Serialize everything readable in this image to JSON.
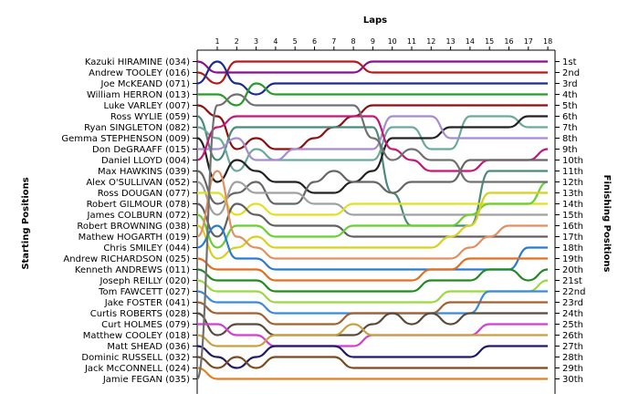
{
  "chart_data": {
    "type": "line",
    "title": "",
    "xlabel": "Laps",
    "ylabel_left": "Starting Positions",
    "ylabel_right": "Finishing Positions",
    "laps": [
      "1",
      "2",
      "3",
      "4",
      "5",
      "6",
      "7",
      "8",
      "9",
      "10",
      "11",
      "12",
      "13",
      "14",
      "15",
      "16",
      "17",
      "18"
    ],
    "drivers": [
      "Kazuki HIRAMINE (034)",
      "Andrew TOOLEY (016)",
      "Joe McKEAND (071)",
      "William HERRON (013)",
      "Luke VARLEY (007)",
      "Ross WYLIE (059)",
      "Ryan SINGLETON (082)",
      "Gemma STEPHENSON (009)",
      "Don DeGRAAFF (015)",
      "Daniel LLOYD (004)",
      "Max HAWKINS (039)",
      "Alex O'SULLIVAN (052)",
      "Ross DOUGAN (077)",
      "Robert GILMOUR (078)",
      "James COLBURN (072)",
      "Robert BROWNING (038)",
      "Mathew HOGARTH (019)",
      "Chris SMILEY (044)",
      "Andrew RICHARDSON (025)",
      "Kenneth ANDREWS (011)",
      "Joseph REILLY (020)",
      "Tom FAWCETT (027)",
      "Jake FOSTER (041)",
      "Curtis ROBERTS (028)",
      "Curt HOLMES (079)",
      "Matthew COOLEY (018)",
      "Matt SHEAD (036)",
      "Dominic RUSSELL (032)",
      "Jack McCONNELL (024)",
      "Jamie FEGAN (035)"
    ],
    "finishing_positions": [
      "1st",
      "2nd",
      "3rd",
      "4th",
      "5th",
      "6th",
      "7th",
      "8th",
      "9th",
      "10th",
      "11th",
      "12th",
      "13th",
      "14th",
      "15th",
      "16th",
      "17th",
      "18th",
      "19th",
      "20th",
      "21st",
      "22nd",
      "23rd",
      "24th",
      "25th",
      "26th",
      "27th",
      "28th",
      "29th",
      "30th"
    ],
    "series": [
      {
        "start": 1,
        "positions": [
          2,
          2,
          2,
          2,
          2,
          2,
          2,
          2,
          1,
          1,
          1,
          1,
          1,
          1,
          1,
          1,
          1,
          1
        ],
        "color": "#8b0e8e"
      },
      {
        "start": 2,
        "positions": [
          3,
          1,
          1,
          1,
          1,
          1,
          1,
          1,
          2,
          2,
          2,
          2,
          2,
          2,
          2,
          2,
          2,
          2
        ],
        "color": "#b31b1b"
      },
      {
        "start": 3,
        "positions": [
          1,
          3,
          4,
          3,
          3,
          3,
          3,
          3,
          3,
          3,
          3,
          3,
          3,
          3,
          3,
          3,
          3,
          3
        ],
        "color": "#1c2b8c"
      },
      {
        "start": 4,
        "positions": [
          4,
          5,
          3,
          4,
          4,
          4,
          4,
          4,
          4,
          4,
          4,
          4,
          4,
          4,
          4,
          4,
          4,
          4
        ],
        "color": "#2a9a2a"
      },
      {
        "start": 5,
        "positions": [
          6,
          9,
          8,
          9,
          9,
          8,
          7,
          6,
          5,
          5,
          5,
          5,
          5,
          5,
          5,
          5,
          5,
          5
        ],
        "color": "#8b1010"
      },
      {
        "start": 6,
        "positions": [
          10,
          7,
          7,
          7,
          7,
          7,
          7,
          7,
          7,
          13,
          16,
          16,
          16,
          16,
          11,
          11,
          11,
          11
        ],
        "color": "#4a8a7a"
      },
      {
        "start": 7,
        "positions": [
          8,
          11,
          9,
          10,
          10,
          10,
          10,
          10,
          10,
          7,
          7,
          9,
          9,
          6,
          6,
          6,
          7,
          7
        ],
        "color": "#6aaa9a"
      },
      {
        "start": 8,
        "positions": [
          12,
          10,
          11,
          12,
          12,
          13,
          13,
          12,
          11,
          8,
          8,
          8,
          7,
          7,
          7,
          7,
          6,
          6
        ],
        "color": "#222222"
      },
      {
        "start": 9,
        "positions": [
          9,
          8,
          10,
          10,
          9,
          9,
          9,
          9,
          9,
          6,
          6,
          6,
          8,
          8,
          8,
          8,
          8,
          8
        ],
        "color": "#a78bd0"
      },
      {
        "start": 10,
        "positions": [
          7,
          6,
          6,
          6,
          6,
          6,
          6,
          6,
          6,
          9,
          10,
          11,
          11,
          11,
          10,
          10,
          10,
          9
        ],
        "color": "#c01878"
      },
      {
        "start": 11,
        "positions": [
          14,
          13,
          12,
          14,
          14,
          12,
          11,
          12,
          12,
          13,
          12,
          12,
          12,
          10,
          10,
          10,
          10,
          10
        ],
        "color": "#666666"
      },
      {
        "start": 12,
        "positions": [
          15,
          12,
          13,
          13,
          13,
          14,
          14,
          15,
          15,
          15,
          15,
          15,
          15,
          15,
          15,
          15,
          15,
          15
        ],
        "color": "#a0a0a0"
      },
      {
        "start": 13,
        "positions": [
          13,
          15,
          14,
          15,
          15,
          15,
          15,
          14,
          14,
          14,
          14,
          14,
          14,
          14,
          14,
          14,
          14,
          14
        ],
        "color": "#e0e020"
      },
      {
        "start": 14,
        "positions": [
          17,
          14,
          15,
          16,
          16,
          16,
          16,
          17,
          17,
          17,
          17,
          17,
          17,
          17,
          17,
          17,
          17,
          17
        ],
        "color": "#606060"
      },
      {
        "start": 15,
        "positions": [
          18,
          16,
          16,
          17,
          17,
          17,
          17,
          16,
          16,
          16,
          16,
          16,
          16,
          15,
          14,
          14,
          14,
          12
        ],
        "color": "#6ad030"
      },
      {
        "start": 16,
        "positions": [
          19,
          18,
          17,
          18,
          18,
          18,
          18,
          18,
          18,
          18,
          18,
          18,
          17,
          16,
          13,
          13,
          13,
          13
        ],
        "color": "#d8d020"
      },
      {
        "start": 17,
        "positions": [
          11,
          17,
          18,
          19,
          19,
          19,
          19,
          19,
          19,
          19,
          19,
          19,
          19,
          18,
          17,
          16,
          16,
          16
        ],
        "color": "#e09060"
      },
      {
        "start": 18,
        "positions": [
          16,
          19,
          19,
          20,
          20,
          20,
          20,
          20,
          20,
          20,
          20,
          20,
          20,
          20,
          20,
          20,
          18,
          18
        ],
        "color": "#2a7ad0"
      },
      {
        "start": 19,
        "positions": [
          20,
          20,
          20,
          21,
          21,
          21,
          21,
          21,
          21,
          21,
          21,
          20,
          20,
          19,
          19,
          19,
          19,
          19
        ],
        "color": "#e07020"
      },
      {
        "start": 20,
        "positions": [
          21,
          21,
          21,
          22,
          22,
          22,
          22,
          22,
          22,
          22,
          22,
          21,
          21,
          21,
          20,
          20,
          21,
          20
        ],
        "color": "#238a23"
      },
      {
        "start": 21,
        "positions": [
          22,
          22,
          22,
          23,
          23,
          23,
          23,
          23,
          23,
          23,
          23,
          23,
          22,
          22,
          22,
          22,
          22,
          21
        ],
        "color": "#9cd840"
      },
      {
        "start": 22,
        "positions": [
          23,
          23,
          23,
          24,
          24,
          24,
          24,
          24,
          24,
          24,
          24,
          24,
          24,
          24,
          22,
          22,
          22,
          22
        ],
        "color": "#3a8ad8"
      },
      {
        "start": 23,
        "positions": [
          24,
          24,
          24,
          25,
          25,
          25,
          25,
          24,
          24,
          24,
          24,
          24,
          23,
          23,
          23,
          23,
          23,
          23
        ],
        "color": "#a06030"
      },
      {
        "start": 24,
        "positions": [
          26,
          25,
          25,
          26,
          26,
          26,
          26,
          26,
          25,
          24,
          25,
          24,
          25,
          24,
          24,
          24,
          24,
          24
        ],
        "color": "#5a4a3a"
      },
      {
        "start": 25,
        "positions": [
          25,
          26,
          26,
          27,
          27,
          27,
          27,
          27,
          26,
          26,
          26,
          26,
          26,
          26,
          25,
          25,
          25,
          25
        ],
        "color": "#d040d0"
      },
      {
        "start": 26,
        "positions": [
          27,
          27,
          27,
          26,
          26,
          26,
          26,
          25,
          26,
          26,
          26,
          26,
          26,
          26,
          26,
          26,
          26,
          26
        ],
        "color": "#c8a040"
      },
      {
        "start": 27,
        "positions": [
          28,
          29,
          28,
          27,
          27,
          27,
          27,
          28,
          28,
          28,
          28,
          28,
          28,
          28,
          27,
          27,
          27,
          27
        ],
        "color": "#1e1a66"
      },
      {
        "start": 28,
        "positions": [
          29,
          28,
          29,
          28,
          28,
          28,
          28,
          29,
          29,
          29,
          29,
          29,
          29,
          29,
          29,
          29,
          29,
          29
        ],
        "color": "#7a4a20"
      },
      {
        "start": 29,
        "positions": [
          30,
          30,
          30,
          30,
          30,
          30,
          30,
          30,
          30,
          30,
          30,
          30,
          30,
          30,
          30,
          30,
          30,
          30
        ],
        "color": "#e08020"
      },
      {
        "start": 30,
        "positions": [
          5,
          4,
          5,
          5,
          5,
          5,
          5,
          5,
          8,
          10,
          9,
          10,
          10,
          12,
          12,
          12,
          12,
          12
        ],
        "color": "#707070"
      }
    ]
  }
}
